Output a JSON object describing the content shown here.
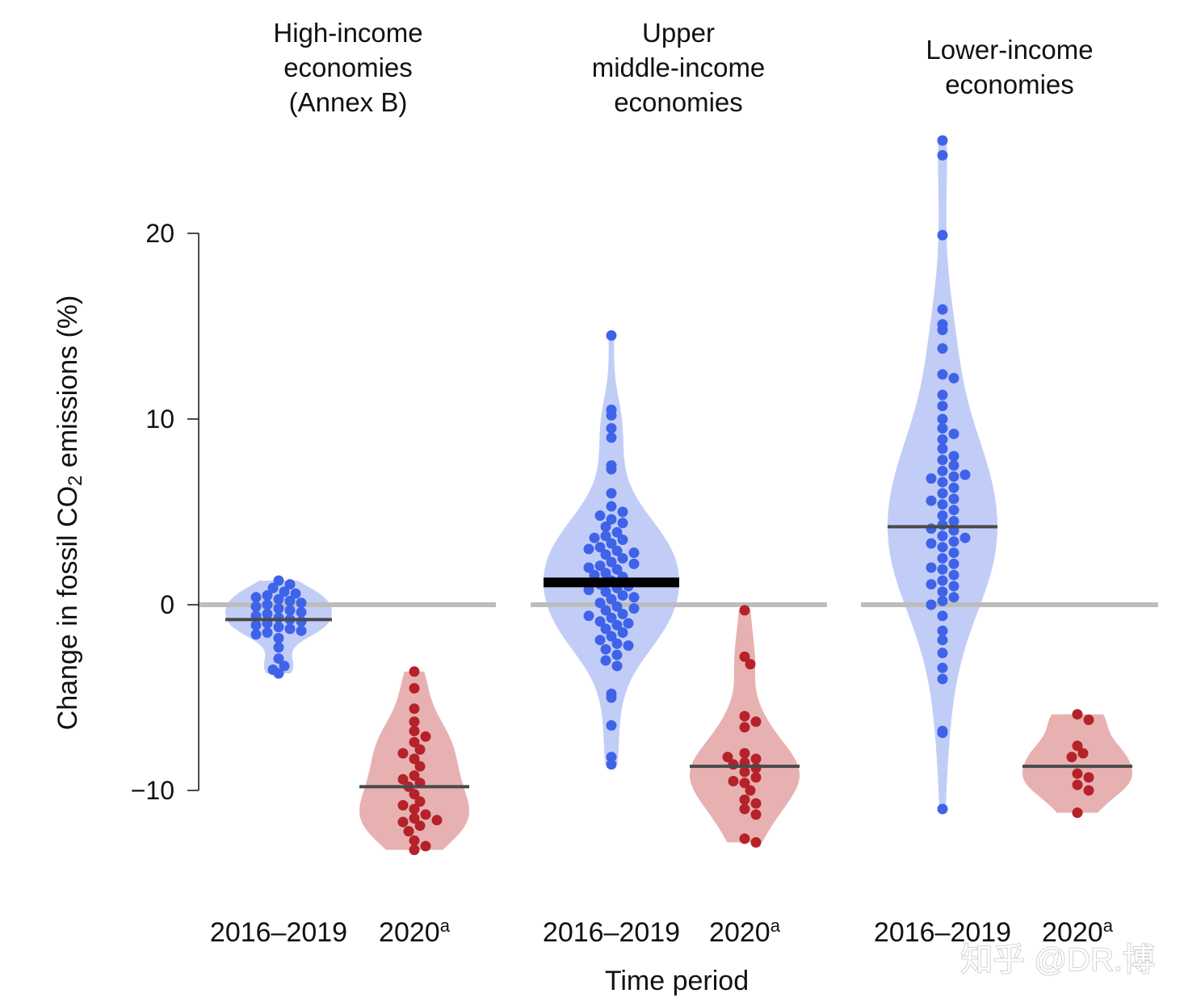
{
  "chart_data": {
    "type": "violin",
    "ylabel": "Change in fossil CO",
    "ylabel_sub": "2",
    "ylabel_suffix": " emissions (%)",
    "xlabel": "Time period",
    "yticks": [
      -10,
      0,
      10,
      20
    ],
    "ytick_labels": [
      "−10",
      "0",
      "10",
      "20"
    ],
    "ylim": [
      -14,
      25.5
    ],
    "reference_line": 0,
    "colors": {
      "period_2016_2019_fill": "#c2cdf7",
      "period_2016_2019_point": "#3f63e8",
      "period_2020_fill": "#e8b1b1",
      "period_2020_point": "#b5222a",
      "median_line": "#4a4a4a",
      "reference_line": "#bdbdbd"
    },
    "panels": [
      {
        "title_lines": [
          "High-income",
          "economies",
          "(Annex B)"
        ],
        "groups": [
          {
            "label": "2016–2019",
            "superscript": "",
            "median": -0.8,
            "min": -3.7,
            "max": 1.3,
            "points": [
              1.3,
              1.1,
              0.9,
              0.7,
              0.6,
              0.5,
              0.4,
              0.3,
              0.2,
              0.1,
              0.0,
              -0.1,
              -0.2,
              -0.3,
              -0.4,
              -0.5,
              -0.6,
              -0.7,
              -0.8,
              -0.9,
              -1.0,
              -1.1,
              -1.2,
              -1.3,
              -1.4,
              -1.5,
              -1.6,
              -1.8,
              -2.3,
              -2.9,
              -3.3,
              -3.5,
              -3.7
            ]
          },
          {
            "label": "2020",
            "superscript": "a",
            "median": -9.8,
            "min": -13.2,
            "max": -3.6,
            "points": [
              -3.6,
              -4.5,
              -5.6,
              -6.3,
              -6.8,
              -7.1,
              -7.4,
              -7.8,
              -8.3,
              -8.7,
              -9.2,
              -9.6,
              -9.8,
              -10.2,
              -10.6,
              -11.0,
              -11.3,
              -11.5,
              -11.7,
              -11.9,
              -12.2,
              -12.7,
              -13.0,
              -13.2,
              -9.4,
              -10.8,
              -11.6,
              -8.0
            ]
          }
        ]
      },
      {
        "title_lines": [
          "Upper",
          "middle-income",
          "economies"
        ],
        "groups": [
          {
            "label": "2016–2019",
            "superscript": "",
            "median": 1.2,
            "min": -8.6,
            "max": 14.5,
            "points": [
              14.5,
              10.5,
              10.2,
              9.5,
              9.0,
              7.5,
              7.3,
              6.0,
              5.3,
              5.0,
              4.6,
              4.4,
              4.2,
              3.9,
              3.7,
              3.5,
              3.3,
              3.1,
              2.9,
              2.7,
              2.5,
              2.3,
              2.1,
              1.9,
              1.7,
              1.5,
              1.3,
              1.1,
              0.9,
              0.7,
              0.5,
              0.3,
              0.1,
              -0.1,
              -0.3,
              -0.5,
              -0.7,
              -0.9,
              -1.1,
              -1.3,
              -1.5,
              -1.7,
              -1.9,
              -2.1,
              -2.4,
              -2.7,
              -3.0,
              -3.3,
              -4.8,
              -5.0,
              -6.5,
              -8.2,
              -8.6,
              2.2,
              1.6,
              0.4,
              -0.2,
              3.6,
              2.8,
              4.8,
              0.8,
              -1.0,
              1.0,
              2.0,
              3.0,
              -0.6,
              -2.2
            ]
          },
          {
            "label": "2020",
            "superscript": "a",
            "median": -8.7,
            "min": -12.8,
            "max": -0.3,
            "points": [
              -0.3,
              -2.8,
              -3.2,
              -6.0,
              -6.3,
              -6.6,
              -8.0,
              -8.3,
              -8.5,
              -8.6,
              -8.8,
              -9.0,
              -9.3,
              -9.6,
              -10.0,
              -10.5,
              -10.7,
              -11.0,
              -11.3,
              -12.6,
              -12.8,
              -8.2,
              -9.5
            ]
          }
        ]
      },
      {
        "title_lines": [
          "Lower-income",
          "economies"
        ],
        "groups": [
          {
            "label": "2016–2019",
            "superscript": "",
            "median": 4.2,
            "min": -11.0,
            "max": 25.0,
            "points": [
              25.0,
              24.2,
              19.9,
              15.9,
              15.1,
              14.8,
              13.8,
              12.4,
              12.2,
              11.3,
              10.7,
              10.0,
              9.5,
              9.2,
              8.9,
              8.4,
              7.8,
              7.5,
              7.2,
              6.9,
              6.6,
              6.3,
              6.0,
              5.7,
              5.4,
              5.1,
              4.8,
              4.5,
              4.3,
              4.0,
              3.7,
              3.4,
              3.1,
              2.8,
              2.5,
              2.2,
              1.9,
              1.6,
              1.3,
              1.0,
              0.7,
              0.4,
              0.2,
              0.0,
              -0.6,
              -1.4,
              -1.9,
              -2.6,
              -3.4,
              -4.0,
              -6.8,
              -6.9,
              -11.0,
              3.3,
              2.0,
              5.6,
              6.8,
              1.1,
              4.1,
              3.6,
              7.0,
              8.0
            ]
          },
          {
            "label": "2020",
            "superscript": "a",
            "median": -8.7,
            "min": -11.2,
            "max": -5.9,
            "points": [
              -5.9,
              -6.2,
              -7.6,
              -8.0,
              -8.2,
              -9.1,
              -9.3,
              -9.7,
              -10.0,
              -11.2
            ]
          }
        ]
      }
    ]
  },
  "watermark": "知乎 @DR.博"
}
